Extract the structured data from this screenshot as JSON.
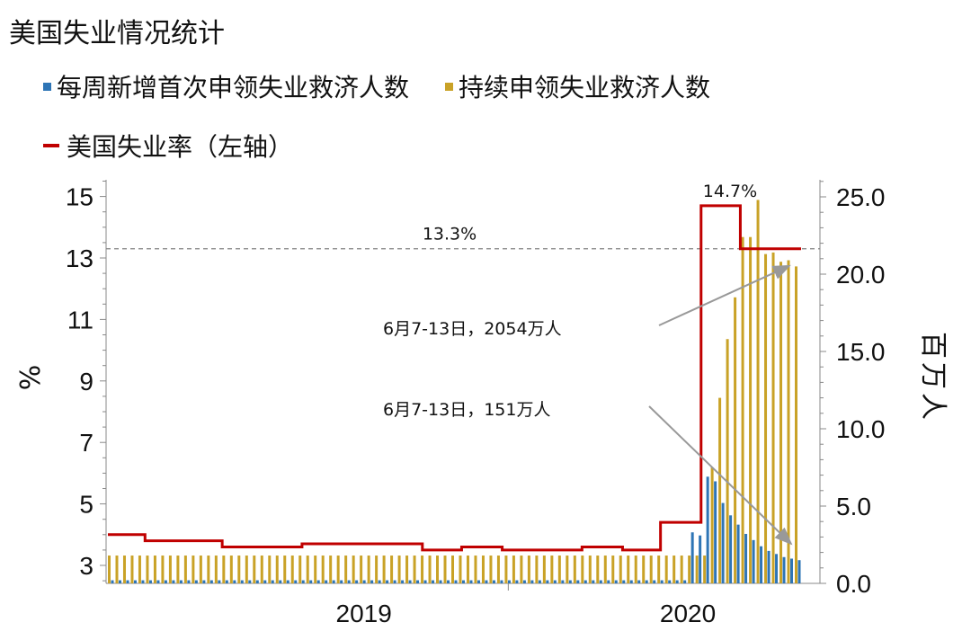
{
  "title": "美国失业情况统计",
  "legend": {
    "claims_initial": "每周新增首次申领失业救济人数",
    "claims_continuing": "持续申领失业救济人数",
    "unemployment_rate": "美国失业率（左轴）"
  },
  "axes": {
    "left_unit": "%",
    "right_unit": "百万人",
    "left_ticks": [
      "15",
      "13",
      "11",
      "9",
      "7",
      "5",
      "3"
    ],
    "right_ticks": [
      "25.0",
      "20.0",
      "15.0",
      "10.0",
      "5.0",
      "0.0"
    ],
    "x_ticks": [
      "2019",
      "2020"
    ]
  },
  "annotations": {
    "peak_rate": "14.7%",
    "ref_rate": "13.3%",
    "continuing_callout": "6月7-13日，2054万人",
    "initial_callout": "6月7-13日，151万人"
  },
  "colors": {
    "initial": "#2e75b6",
    "continuing": "#c9a227",
    "rate": "#c00000",
    "refline": "#808080",
    "arrow": "#999999"
  },
  "chart_data": {
    "type": "bar",
    "x_range": [
      "2019-01-05",
      "2020-06-13"
    ],
    "left_ylim": [
      2.5,
      15.5
    ],
    "right_ylim": [
      0,
      26
    ],
    "continuing_claims_millions": [
      1.8,
      1.8,
      1.8,
      1.8,
      1.8,
      1.8,
      1.8,
      1.8,
      1.8,
      1.8,
      1.8,
      1.8,
      1.8,
      1.8,
      1.8,
      1.8,
      1.8,
      1.8,
      1.8,
      1.8,
      1.8,
      1.8,
      1.8,
      1.8,
      1.8,
      1.8,
      1.8,
      1.8,
      1.8,
      1.8,
      1.8,
      1.8,
      1.8,
      1.8,
      1.8,
      1.8,
      1.8,
      1.8,
      1.8,
      1.8,
      1.8,
      1.8,
      1.8,
      1.8,
      1.8,
      1.8,
      1.8,
      1.8,
      1.8,
      1.8,
      1.8,
      1.8,
      1.8,
      1.8,
      1.8,
      1.8,
      1.8,
      1.8,
      1.8,
      1.8,
      1.8,
      1.8,
      1.8,
      1.8,
      1.8,
      1.8,
      1.8,
      1.8,
      1.8,
      1.8,
      1.8,
      1.8,
      1.8,
      1.8,
      1.8,
      1.8,
      1.8,
      1.8,
      1.8,
      7.5,
      12.0,
      15.8,
      18.5,
      22.4,
      22.4,
      24.8,
      21.3,
      21.4,
      20.8,
      20.9,
      20.5
    ],
    "initial_claims_millions": [
      0.2,
      0.2,
      0.2,
      0.2,
      0.2,
      0.2,
      0.2,
      0.2,
      0.2,
      0.2,
      0.2,
      0.2,
      0.2,
      0.2,
      0.2,
      0.2,
      0.2,
      0.2,
      0.2,
      0.2,
      0.2,
      0.2,
      0.2,
      0.2,
      0.2,
      0.2,
      0.2,
      0.2,
      0.2,
      0.2,
      0.2,
      0.2,
      0.2,
      0.2,
      0.2,
      0.2,
      0.2,
      0.2,
      0.2,
      0.2,
      0.2,
      0.2,
      0.2,
      0.2,
      0.2,
      0.2,
      0.2,
      0.2,
      0.2,
      0.2,
      0.2,
      0.2,
      0.2,
      0.2,
      0.2,
      0.2,
      0.2,
      0.2,
      0.2,
      0.2,
      0.2,
      0.2,
      0.2,
      0.2,
      0.2,
      0.2,
      0.2,
      0.2,
      0.2,
      0.2,
      0.2,
      0.2,
      0.2,
      0.2,
      0.2,
      0.2,
      3.3,
      3.1,
      6.9,
      6.6,
      5.2,
      4.4,
      3.8,
      3.2,
      2.8,
      2.4,
      2.1,
      1.9,
      1.7,
      1.6,
      1.5
    ],
    "unemployment_rate": {
      "x": [
        "2019-01",
        "2019-02",
        "2019-03",
        "2019-04",
        "2019-05",
        "2019-06",
        "2019-07",
        "2019-08",
        "2019-09",
        "2019-10",
        "2019-11",
        "2019-12",
        "2020-01",
        "2020-02",
        "2020-03",
        "2020-04",
        "2020-05"
      ],
      "y": [
        4.0,
        3.8,
        3.8,
        3.6,
        3.6,
        3.7,
        3.7,
        3.7,
        3.5,
        3.6,
        3.5,
        3.5,
        3.6,
        3.5,
        4.4,
        14.7,
        13.3
      ]
    },
    "reference_line": 13.3
  }
}
